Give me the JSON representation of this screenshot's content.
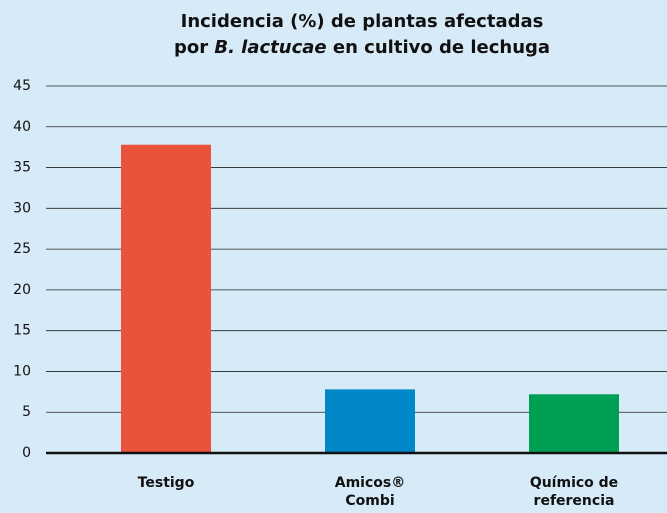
{
  "chart_data": {
    "type": "bar",
    "title": [
      [
        "Incidencia (%) de plantas afectadas"
      ],
      [
        "por ",
        "B. lactucae",
        " en cultivo de lechuga"
      ]
    ],
    "categories": [
      "Testigo",
      "Amicos® Combi",
      "Químico de referencia"
    ],
    "values": [
      37.8,
      7.8,
      7.2
    ],
    "colors": [
      "#e8533a",
      "#0087c7",
      "#00a054"
    ],
    "ylim": [
      0,
      45
    ],
    "yticks": [
      0,
      5,
      10,
      15,
      20,
      25,
      30,
      35,
      40,
      45
    ],
    "grid": true
  }
}
